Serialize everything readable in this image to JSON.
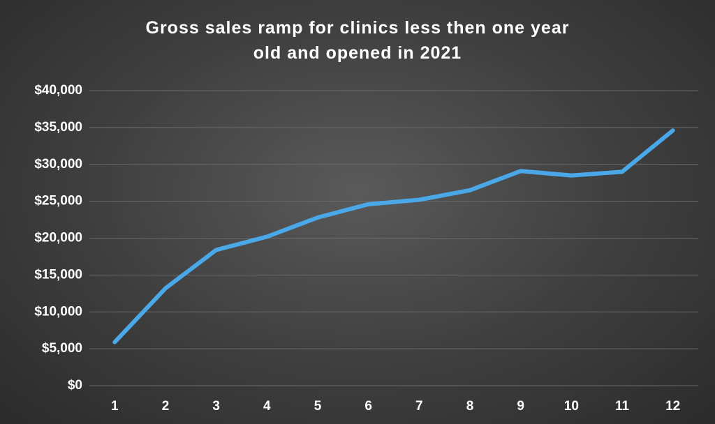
{
  "chart_data": {
    "type": "line",
    "title": "Gross sales ramp for clinics less then one year old and opened in 2021",
    "categories": [
      "1",
      "2",
      "3",
      "4",
      "5",
      "6",
      "7",
      "8",
      "9",
      "10",
      "11",
      "12"
    ],
    "series": [
      {
        "name": "Gross sales",
        "color": "#4aa8e8",
        "values": [
          5900,
          13200,
          18400,
          20200,
          22800,
          24600,
          25200,
          26500,
          29100,
          28500,
          29000,
          34600
        ]
      }
    ],
    "ylim": [
      0,
      40000
    ],
    "yticks": [
      {
        "value": 0,
        "label": "$0"
      },
      {
        "value": 5000,
        "label": "$5,000"
      },
      {
        "value": 10000,
        "label": "$10,000"
      },
      {
        "value": 15000,
        "label": "$15,000"
      },
      {
        "value": 20000,
        "label": "$20,000"
      },
      {
        "value": 25000,
        "label": "$25,000"
      },
      {
        "value": 30000,
        "label": "$30,000"
      },
      {
        "value": 35000,
        "label": "$35,000"
      },
      {
        "value": 40000,
        "label": "$40,000"
      }
    ],
    "grid": true
  }
}
